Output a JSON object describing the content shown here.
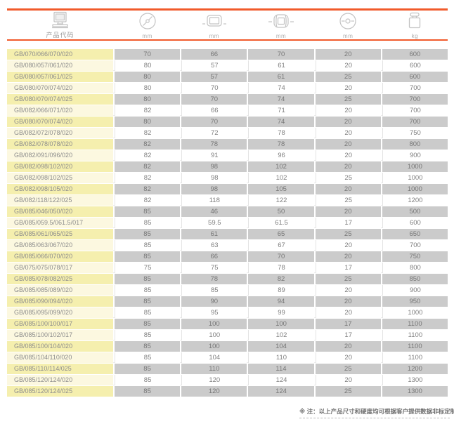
{
  "header": {
    "product_code_label": "产品代码",
    "columns": [
      {
        "icon": "outer-diameter-icon",
        "unit": "mm"
      },
      {
        "icon": "wheel-width-icon",
        "unit": "mm"
      },
      {
        "icon": "wheel-length-icon",
        "unit": "mm"
      },
      {
        "icon": "bore-diameter-icon",
        "unit": "mm"
      },
      {
        "icon": "load-weight-icon",
        "unit": "kg"
      }
    ]
  },
  "table": {
    "rows": [
      {
        "code": "GB/070/066/070/020",
        "values": [
          "70",
          "66",
          "70",
          "20",
          "600"
        ]
      },
      {
        "code": "GB/080/057/061/020",
        "values": [
          "80",
          "57",
          "61",
          "20",
          "600"
        ]
      },
      {
        "code": "GB/080/057/061/025",
        "values": [
          "80",
          "57",
          "61",
          "25",
          "600"
        ]
      },
      {
        "code": "GB/080/070/074/020",
        "values": [
          "80",
          "70",
          "74",
          "20",
          "700"
        ]
      },
      {
        "code": "GB/080/070/074/025",
        "values": [
          "80",
          "70",
          "74",
          "25",
          "700"
        ]
      },
      {
        "code": "GB/082/066/071/020",
        "values": [
          "82",
          "66",
          "71",
          "20",
          "700"
        ]
      },
      {
        "code": "GB/080/070/074/020",
        "values": [
          "80",
          "70",
          "74",
          "20",
          "700"
        ]
      },
      {
        "code": "GB/082/072/078/020",
        "values": [
          "82",
          "72",
          "78",
          "20",
          "750"
        ]
      },
      {
        "code": "GB/082/078/078/020",
        "values": [
          "82",
          "78",
          "78",
          "20",
          "800"
        ]
      },
      {
        "code": "GB/082/091/096/020",
        "values": [
          "82",
          "91",
          "96",
          "20",
          "900"
        ]
      },
      {
        "code": "GB/082/098/102/020",
        "values": [
          "82",
          "98",
          "102",
          "20",
          "1000"
        ]
      },
      {
        "code": "GB/082/098/102/025",
        "values": [
          "82",
          "98",
          "102",
          "25",
          "1000"
        ]
      },
      {
        "code": "GB/082/098/105/020",
        "values": [
          "82",
          "98",
          "105",
          "20",
          "1000"
        ]
      },
      {
        "code": "GB/082/118/122/025",
        "values": [
          "82",
          "118",
          "122",
          "25",
          "1200"
        ]
      },
      {
        "code": "GB/085/046/050/020",
        "values": [
          "85",
          "46",
          "50",
          "20",
          "500"
        ]
      },
      {
        "code": "GB/085/059.5/061.5/017",
        "values": [
          "85",
          "59.5",
          "61.5",
          "17",
          "600"
        ]
      },
      {
        "code": "GB/085/061/065/025",
        "values": [
          "85",
          "61",
          "65",
          "25",
          "650"
        ]
      },
      {
        "code": "GB/085/063/067/020",
        "values": [
          "85",
          "63",
          "67",
          "20",
          "700"
        ]
      },
      {
        "code": "GB/085/066/070/020",
        "values": [
          "85",
          "66",
          "70",
          "20",
          "750"
        ]
      },
      {
        "code": "GB/075/075/078/017",
        "values": [
          "75",
          "75",
          "78",
          "17",
          "800"
        ]
      },
      {
        "code": "GB/085/078/082/025",
        "values": [
          "85",
          "78",
          "82",
          "25",
          "850"
        ]
      },
      {
        "code": "GB/085/085/089/020",
        "values": [
          "85",
          "85",
          "89",
          "20",
          "900"
        ]
      },
      {
        "code": "GB/085/090/094/020",
        "values": [
          "85",
          "90",
          "94",
          "20",
          "950"
        ]
      },
      {
        "code": "GB/085/095/099/020",
        "values": [
          "85",
          "95",
          "99",
          "20",
          "1000"
        ]
      },
      {
        "code": "GB/085/100/100/017",
        "values": [
          "85",
          "100",
          "100",
          "17",
          "1100"
        ]
      },
      {
        "code": "GB/085/100/102/017",
        "values": [
          "85",
          "100",
          "102",
          "17",
          "1100"
        ]
      },
      {
        "code": "GB/085/100/104/020",
        "values": [
          "85",
          "100",
          "104",
          "20",
          "1100"
        ]
      },
      {
        "code": "GB/085/104/110/020",
        "values": [
          "85",
          "104",
          "110",
          "20",
          "1100"
        ]
      },
      {
        "code": "GB/085/110/114/025",
        "values": [
          "85",
          "110",
          "114",
          "25",
          "1200"
        ]
      },
      {
        "code": "GB/085/120/124/020",
        "values": [
          "85",
          "120",
          "124",
          "20",
          "1300"
        ]
      },
      {
        "code": "GB/085/120/124/025",
        "values": [
          "85",
          "120",
          "124",
          "25",
          "1300"
        ]
      }
    ]
  },
  "footer": {
    "note": "※ 注：以上产品尺寸和硬度均可根据客户提供数据非标定制！"
  },
  "colors": {
    "accent_orange": "#F15A2B",
    "shaded_code_bg": "#F5EFAE",
    "plain_code_bg": "#FCF8E0",
    "shaded_cell_bg": "#CBCBCB",
    "plain_cell_bg": "#FFFFFF",
    "text_gray": "#7F7F7F"
  }
}
